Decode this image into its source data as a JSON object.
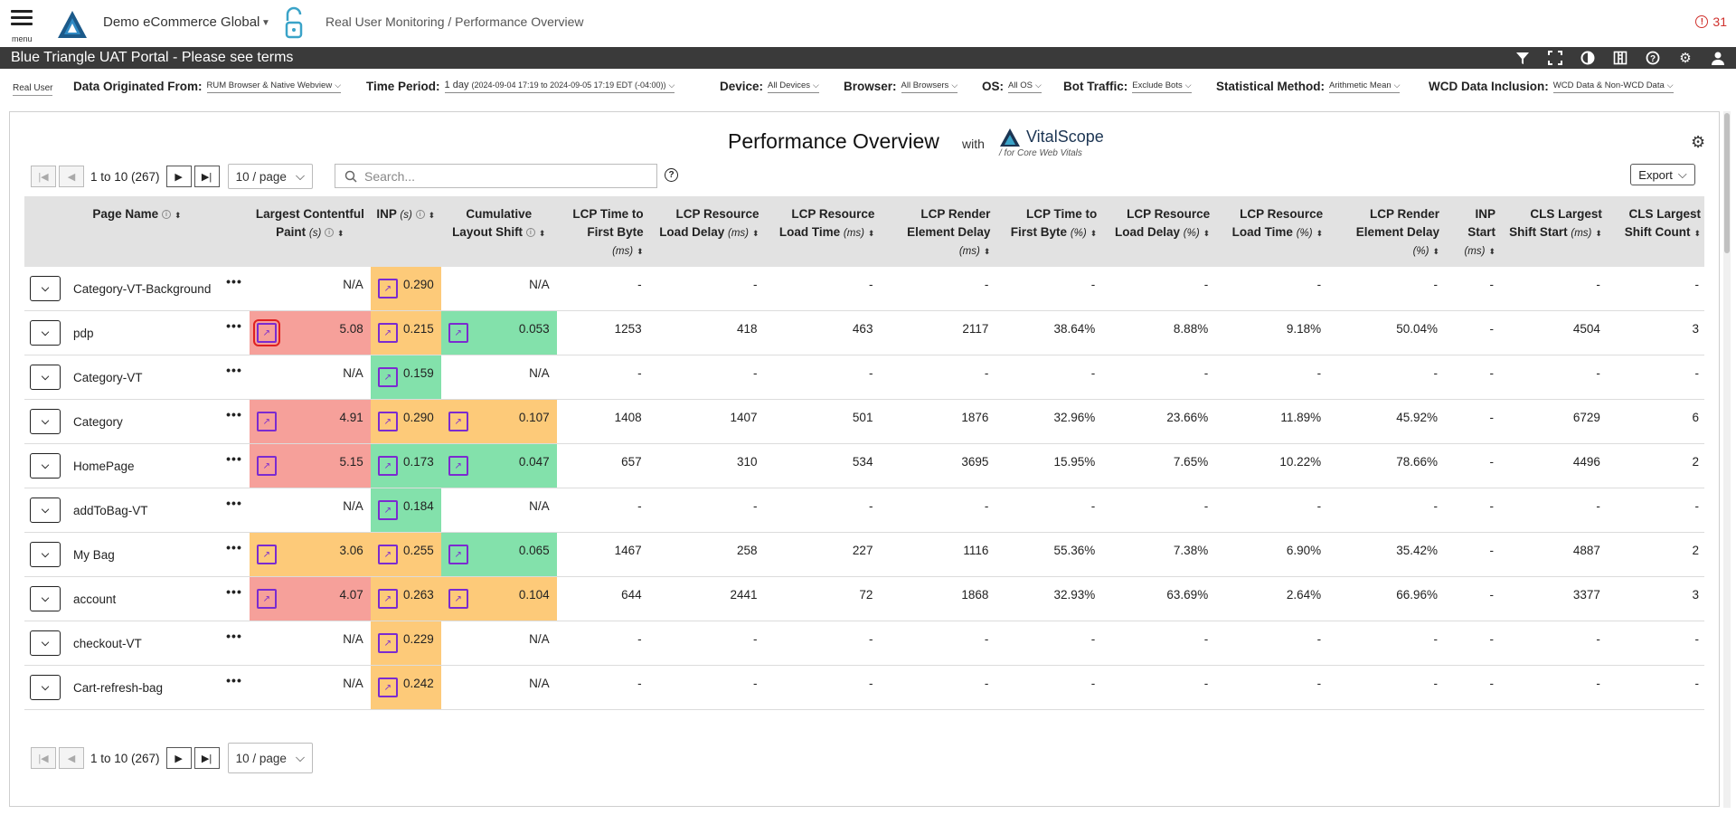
{
  "header": {
    "menu_label": "menu",
    "org": "Demo eCommerce Global",
    "path": "Real User Monitoring / Performance Overview",
    "alert_count": "31"
  },
  "darkbar": {
    "portal": "Blue Triangle UAT Portal - Please see terms",
    "icons": [
      "filter-icon",
      "fullscreen-icon",
      "contrast-icon",
      "columns-icon",
      "help-icon",
      "gear-icon",
      "user-icon"
    ]
  },
  "filters": {
    "mode": "Real User",
    "origin_label": "Data Originated From:",
    "origin_value": "RUM Browser & Native Webview",
    "period_label": "Time Period:",
    "period_value": "1 day",
    "period_detail": "(2024-09-04 17:19 to 2024-09-05 17:19 EDT (-04:00))",
    "device_label": "Device:",
    "device_value": "All Devices",
    "browser_label": "Browser:",
    "browser_value": "All Browsers",
    "os_label": "OS:",
    "os_value": "All OS",
    "bot_label": "Bot Traffic:",
    "bot_value": "Exclude Bots",
    "stat_label": "Statistical Method:",
    "stat_value": "Arithmetic Mean",
    "wcd_label": "WCD Data Inclusion:",
    "wcd_value": "WCD Data & Non-WCD Data"
  },
  "main": {
    "title": "Performance Overview",
    "with": "with",
    "vs_name": "VitalScope",
    "vs_sub": "/ for Core Web Vitals",
    "search_placeholder": "Search...",
    "export": "Export",
    "pager_range": "1 to 10 (267)",
    "per_page": "10 / page"
  },
  "columns": [
    {
      "label": "Page Name",
      "unit": ""
    },
    {
      "label": "Largest Contentful Paint",
      "unit": "(s)"
    },
    {
      "label": "INP",
      "unit": "(s)"
    },
    {
      "label": "Cumulative Layout Shift",
      "unit": ""
    },
    {
      "label": "LCP Time to First Byte",
      "unit": "(ms)"
    },
    {
      "label": "LCP Resource Load Delay",
      "unit": "(ms)"
    },
    {
      "label": "LCP Resource Load Time",
      "unit": "(ms)"
    },
    {
      "label": "LCP Render Element Delay",
      "unit": "(ms)"
    },
    {
      "label": "LCP Time to First Byte",
      "unit": "(%)"
    },
    {
      "label": "LCP Resource Load Delay",
      "unit": "(%)"
    },
    {
      "label": "LCP Resource Load Time",
      "unit": "(%)"
    },
    {
      "label": "LCP Render Element Delay",
      "unit": "(%)"
    },
    {
      "label": "INP Start",
      "unit": "(ms)"
    },
    {
      "label": "CLS Largest Shift Start",
      "unit": "(ms)"
    },
    {
      "label": "CLS Largest Shift Count",
      "unit": ""
    }
  ],
  "rows": [
    {
      "name": "Category-VT-Background",
      "lcp": "N/A",
      "lcp_c": "",
      "inp": "0.290",
      "inp_c": "yellow",
      "cls": "N/A",
      "cls_c": "",
      "v": [
        "-",
        "-",
        "-",
        "-",
        "-",
        "-",
        "-",
        "-",
        "-",
        "-",
        "-"
      ]
    },
    {
      "name": "pdp",
      "lcp": "5.08",
      "lcp_c": "red",
      "inp": "0.215",
      "inp_c": "yellow",
      "cls": "0.053",
      "cls_c": "green",
      "v": [
        "1253",
        "418",
        "463",
        "2117",
        "38.64%",
        "8.88%",
        "9.18%",
        "50.04%",
        "-",
        "4504",
        "3"
      ]
    },
    {
      "name": "Category-VT",
      "lcp": "N/A",
      "lcp_c": "",
      "inp": "0.159",
      "inp_c": "green",
      "cls": "N/A",
      "cls_c": "",
      "v": [
        "-",
        "-",
        "-",
        "-",
        "-",
        "-",
        "-",
        "-",
        "-",
        "-",
        "-"
      ]
    },
    {
      "name": "Category",
      "lcp": "4.91",
      "lcp_c": "red",
      "inp": "0.290",
      "inp_c": "yellow",
      "cls": "0.107",
      "cls_c": "yellow",
      "v": [
        "1408",
        "1407",
        "501",
        "1876",
        "32.96%",
        "23.66%",
        "11.89%",
        "45.92%",
        "-",
        "6729",
        "6"
      ]
    },
    {
      "name": "HomePage",
      "lcp": "5.15",
      "lcp_c": "red",
      "inp": "0.173",
      "inp_c": "green",
      "cls": "0.047",
      "cls_c": "green",
      "v": [
        "657",
        "310",
        "534",
        "3695",
        "15.95%",
        "7.65%",
        "10.22%",
        "78.66%",
        "-",
        "4496",
        "2"
      ]
    },
    {
      "name": "addToBag-VT",
      "lcp": "N/A",
      "lcp_c": "",
      "inp": "0.184",
      "inp_c": "green",
      "cls": "N/A",
      "cls_c": "",
      "v": [
        "-",
        "-",
        "-",
        "-",
        "-",
        "-",
        "-",
        "-",
        "-",
        "-",
        "-"
      ]
    },
    {
      "name": "My Bag",
      "lcp": "3.06",
      "lcp_c": "yellow",
      "inp": "0.255",
      "inp_c": "yellow",
      "cls": "0.065",
      "cls_c": "green",
      "v": [
        "1467",
        "258",
        "227",
        "1116",
        "55.36%",
        "7.38%",
        "6.90%",
        "35.42%",
        "-",
        "4887",
        "2"
      ]
    },
    {
      "name": "account",
      "lcp": "4.07",
      "lcp_c": "red",
      "inp": "0.263",
      "inp_c": "yellow",
      "cls": "0.104",
      "cls_c": "yellow",
      "v": [
        "644",
        "2441",
        "72",
        "1868",
        "32.93%",
        "63.69%",
        "2.64%",
        "66.96%",
        "-",
        "3377",
        "3"
      ]
    },
    {
      "name": "checkout-VT",
      "lcp": "N/A",
      "lcp_c": "",
      "inp": "0.229",
      "inp_c": "yellow",
      "cls": "N/A",
      "cls_c": "",
      "v": [
        "-",
        "-",
        "-",
        "-",
        "-",
        "-",
        "-",
        "-",
        "-",
        "-",
        "-"
      ]
    },
    {
      "name": "Cart-refresh-bag",
      "lcp": "N/A",
      "lcp_c": "",
      "inp": "0.242",
      "inp_c": "yellow",
      "cls": "N/A",
      "cls_c": "",
      "v": [
        "-",
        "-",
        "-",
        "-",
        "-",
        "-",
        "-",
        "-",
        "-",
        "-",
        "-"
      ]
    }
  ],
  "colors": {
    "red": "#f6a09a",
    "yellow": "#fdca79",
    "green": "#83e1ab",
    "accent": "#7b2bd0",
    "darkbar": "#3a3a3a"
  }
}
